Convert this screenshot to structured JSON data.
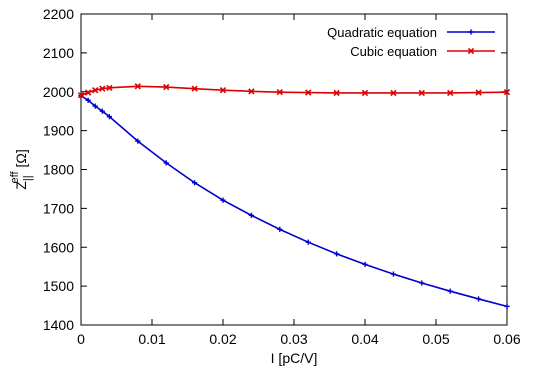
{
  "chart_data": {
    "type": "line",
    "xlabel": "I [pC/V]",
    "ylabel": {
      "base": "Z",
      "subscript": "||",
      "superscript": "eff",
      "unit": "[Ω]"
    },
    "xlim": [
      0,
      0.06
    ],
    "ylim": [
      1400,
      2200
    ],
    "x_ticks": [
      0,
      0.01,
      0.02,
      0.03,
      0.04,
      0.05,
      0.06
    ],
    "x_tick_labels": [
      "0",
      "0.01",
      "0.02",
      "0.03",
      "0.04",
      "0.05",
      "0.06"
    ],
    "y_ticks": [
      1400,
      1500,
      1600,
      1700,
      1800,
      1900,
      2000,
      2100,
      2200
    ],
    "y_tick_labels": [
      "1400",
      "1500",
      "1600",
      "1700",
      "1800",
      "1900",
      "2000",
      "2100",
      "2200"
    ],
    "legend_position": "top-right",
    "grid": false,
    "series": [
      {
        "name": "Quadratic equation",
        "color": "#0000cc",
        "marker": "plus",
        "x": [
          0,
          0.001,
          0.002,
          0.003,
          0.004,
          0.008,
          0.012,
          0.016,
          0.02,
          0.024,
          0.028,
          0.032,
          0.036,
          0.04,
          0.044,
          0.048,
          0.052,
          0.056,
          0.06
        ],
        "y": [
          1990,
          1978,
          1963,
          1950,
          1936,
          1873,
          1817,
          1766,
          1721,
          1682,
          1646,
          1613,
          1583,
          1556,
          1531,
          1508,
          1487,
          1467,
          1448
        ]
      },
      {
        "name": "Cubic equation",
        "color": "#dd0000",
        "marker": "x",
        "x": [
          0,
          0.001,
          0.002,
          0.003,
          0.004,
          0.008,
          0.012,
          0.016,
          0.02,
          0.024,
          0.028,
          0.032,
          0.036,
          0.04,
          0.044,
          0.048,
          0.052,
          0.056,
          0.06
        ],
        "y": [
          1991,
          1998,
          2004,
          2008,
          2010,
          2014,
          2012,
          2008,
          2004,
          2001,
          1999,
          1998,
          1997,
          1997,
          1997,
          1997,
          1997,
          1998,
          1999
        ]
      }
    ]
  }
}
